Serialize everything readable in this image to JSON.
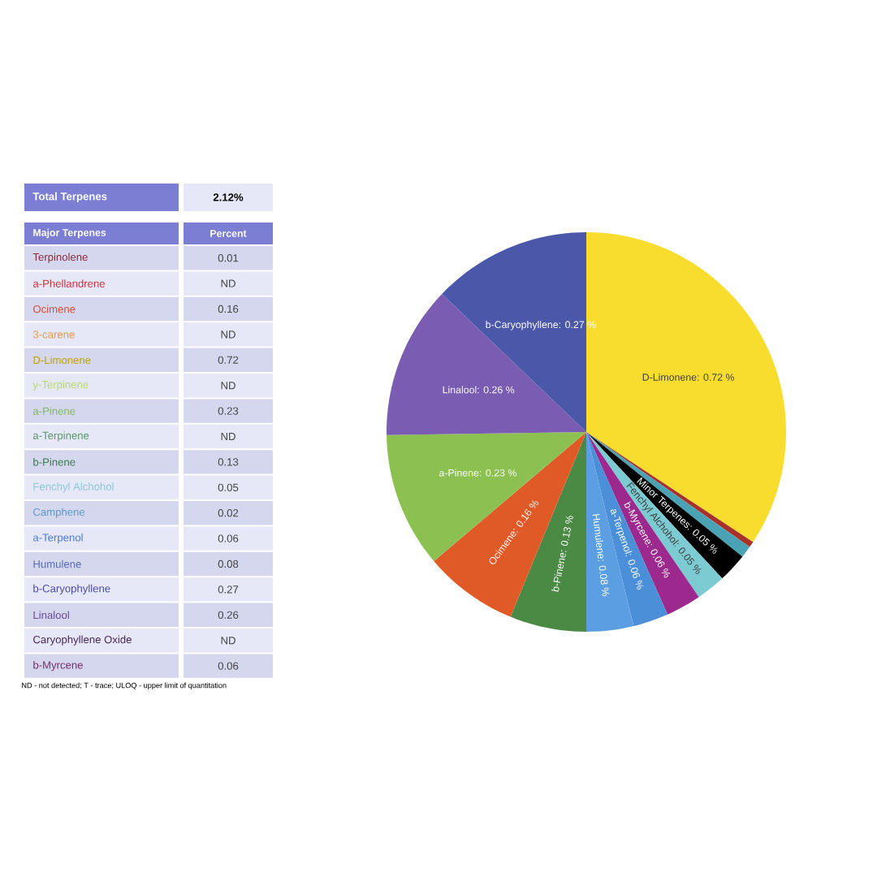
{
  "chart_data": [
    {
      "type": "other",
      "annotations": [
        "Total Terpenes",
        "2.12%",
        "Major Terpenes",
        "Percent",
        "Terpinolene",
        "0.01",
        "a-Phellandrene",
        "ND",
        "Ocimene",
        "0.16",
        "3-carene",
        "ND",
        "D-Limonene",
        "0.72",
        "y-Terpinene",
        "ND",
        "a-Pinene",
        "0.23",
        "a-Terpinene",
        "ND",
        "b-Pinene",
        "0.13",
        "Fenchyl Alchohol",
        "0.05",
        "Camphene",
        "0.02",
        "a-Terpenol",
        "0.06",
        "Humulene",
        "0.08",
        "b-Caryophyllene",
        "0.27",
        "Linalool",
        "0.26",
        "Caryophyllene Oxide",
        "ND",
        "b-Myrcene",
        "0.06",
        "ND - not detected; T - trace; ULOQ - upper limit of quantitation"
      ]
    },
    {
      "type": "pie",
      "categories": [
        null,
        null,
        null,
        null,
        null,
        null,
        null,
        null,
        null,
        null,
        null,
        null,
        null
      ],
      "values": [
        0.72,
        0.01,
        0.02,
        0.05,
        0.05,
        0.06,
        0.06,
        0.08,
        0.13,
        0.16,
        0.23,
        0.26,
        0.27
      ],
      "value_labels": [
        "D-Limonene: 0.72 %",
        null,
        null,
        "Minor Terpenes: 0.05 %",
        "Fenchyl Alchohol: 0.05 %",
        "b-Myrcene: 0.06 %",
        "a-Terpenol: 0.06 %",
        "Humulene: 0.08 %",
        "b-Pinene: 0.13 %",
        "Ocimene: 0.16 %",
        "a-Pinene: 0.23 %",
        "Linalool: 0.26 %",
        "b-Caryophyllene: 0.27 %"
      ],
      "colors": [
        "#f8dc2e",
        "#a8322a",
        "#4aa3b4",
        "#000000",
        "#7ccbd2",
        "#9c2a8e",
        "#4a8fd8",
        "#5c9ee2",
        "#4a8a44",
        "#e05a28",
        "#8cc152",
        "#7a5cb2",
        "#4b57a8"
      ]
    }
  ]
}
